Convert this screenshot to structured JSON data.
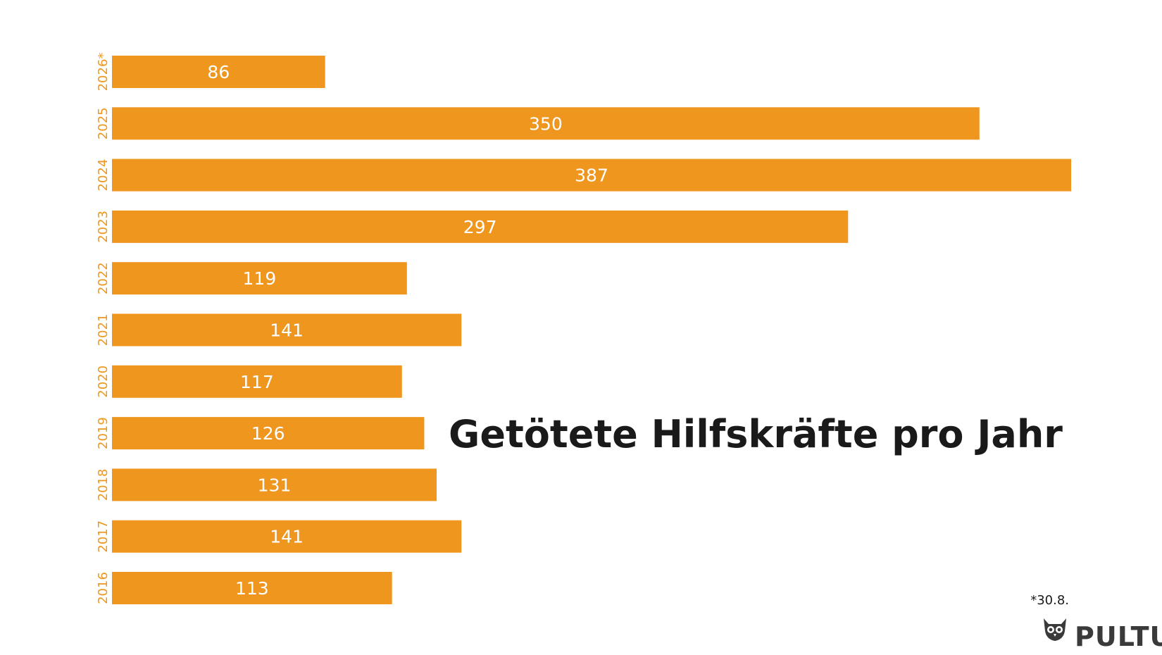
{
  "chart_data": {
    "type": "bar",
    "orientation": "horizontal",
    "title": "Getötete Hilfskräfte pro Jahr",
    "categories": [
      "2026*",
      "2025",
      "2024",
      "2023",
      "2022",
      "2021",
      "2020",
      "2019",
      "2018",
      "2017",
      "2016"
    ],
    "values": [
      86,
      350,
      387,
      297,
      119,
      141,
      117,
      126,
      131,
      141,
      113
    ],
    "xlim": [
      0,
      387
    ],
    "grid": false,
    "legend": "none",
    "footnote": "*30.8."
  },
  "colors": {
    "bar": "#ef961f",
    "bar_text": "#ffffff",
    "year_label": "#ef961f",
    "title": "#1a1a1a",
    "brand": "#3a3a3a"
  },
  "brand": {
    "name": "PULTU",
    "icon": "owl-icon"
  }
}
